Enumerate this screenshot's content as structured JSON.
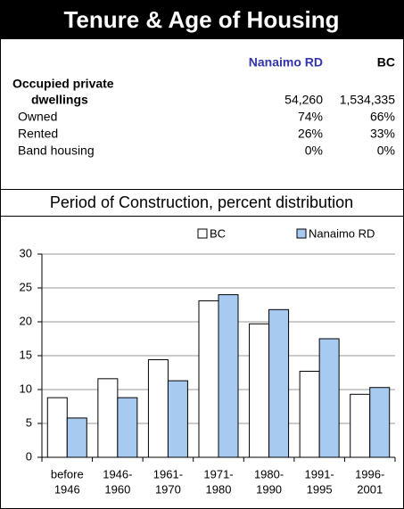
{
  "table": {
    "title": "Tenure & Age of Housing",
    "columns": [
      "Nanaimo RD",
      "BC"
    ],
    "rows": [
      {
        "label": [
          "Occupied private",
          "dwellings"
        ],
        "values": [
          "54,260",
          "1,534,335"
        ]
      },
      {
        "label": [
          "Owned"
        ],
        "values": [
          "74%",
          "66%"
        ]
      },
      {
        "label": [
          "Rented"
        ],
        "values": [
          "26%",
          "33%"
        ]
      },
      {
        "label": [
          "Band housing"
        ],
        "values": [
          "0%",
          "0%"
        ]
      }
    ]
  },
  "chart_data": {
    "type": "bar",
    "title": "Period of Construction, percent distribution",
    "categories": [
      [
        "before",
        "1946"
      ],
      [
        "1946-",
        "1960"
      ],
      [
        "1961-",
        "1970"
      ],
      [
        "1971-",
        "1980"
      ],
      [
        "1980-",
        "1990"
      ],
      [
        "1991-",
        "1995"
      ],
      [
        "1996-",
        "2001"
      ]
    ],
    "series": [
      {
        "name": "BC",
        "color": "#ffffff",
        "values": [
          8.8,
          11.6,
          14.4,
          23.1,
          19.7,
          12.7,
          9.3
        ]
      },
      {
        "name": "Nanaimo RD",
        "color": "#a6caf0",
        "values": [
          5.8,
          8.8,
          11.3,
          24.0,
          21.8,
          17.5,
          10.3
        ]
      }
    ],
    "ylim": [
      0,
      30
    ],
    "yticks": [
      0,
      5,
      10,
      15,
      20,
      25,
      30
    ],
    "grid": true
  }
}
